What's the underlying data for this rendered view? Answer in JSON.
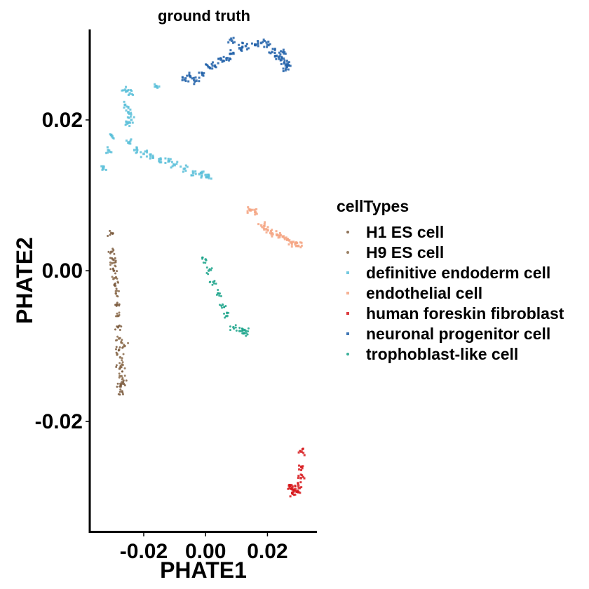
{
  "chart_data": {
    "type": "scatter",
    "title": "ground truth",
    "xlabel": "PHATE1",
    "ylabel": "PHATE2",
    "xlim": [
      -0.037,
      0.036
    ],
    "ylim": [
      -0.0345,
      0.032
    ],
    "x_ticks": [
      {
        "value": -0.02,
        "label": "-0.02"
      },
      {
        "value": 0.0,
        "label": "0.00"
      },
      {
        "value": 0.02,
        "label": "0.02"
      }
    ],
    "y_ticks": [
      {
        "value": 0.02,
        "label": "0.02"
      },
      {
        "value": 0.0,
        "label": "0.00"
      },
      {
        "value": -0.02,
        "label": "-0.02"
      }
    ],
    "legend": {
      "title": "cellTypes",
      "position": "right"
    },
    "series": [
      {
        "name": "H1 ES cell",
        "color": "#7b5a3d",
        "marker": "circle",
        "points": [
          [
            -0.0305,
            0.005
          ],
          [
            -0.0305,
            0.0025
          ],
          [
            -0.03,
            0.0015
          ],
          [
            -0.0297,
            0.0
          ],
          [
            -0.0292,
            -0.002
          ],
          [
            -0.0288,
            -0.0045
          ],
          [
            -0.0283,
            -0.0075
          ],
          [
            -0.028,
            -0.0105
          ],
          [
            -0.0278,
            -0.013
          ],
          [
            -0.0275,
            -0.015
          ],
          [
            -0.027,
            -0.016
          ],
          [
            -0.0265,
            -0.015
          ]
        ]
      },
      {
        "name": "H9 ES cell",
        "color": "#8a6a4a",
        "marker": "circle",
        "points": [
          [
            -0.0302,
            0.001
          ],
          [
            -0.0295,
            -0.001
          ],
          [
            -0.029,
            -0.003
          ],
          [
            -0.0285,
            -0.006
          ],
          [
            -0.028,
            -0.009
          ],
          [
            -0.0276,
            -0.0115
          ],
          [
            -0.0272,
            -0.014
          ],
          [
            -0.0268,
            -0.0125
          ],
          [
            -0.0262,
            -0.01
          ]
        ]
      },
      {
        "name": "definitive endoderm cell",
        "color": "#5bc0d9",
        "marker": "square",
        "points": [
          [
            -0.0315,
            0.016
          ],
          [
            -0.0305,
            0.018
          ],
          [
            -0.026,
            0.022
          ],
          [
            -0.025,
            0.021
          ],
          [
            -0.0255,
            0.0195
          ],
          [
            -0.024,
            0.02
          ],
          [
            -0.0245,
            0.0235
          ],
          [
            -0.026,
            0.024
          ],
          [
            -0.025,
            0.017
          ],
          [
            -0.023,
            0.016
          ],
          [
            -0.02,
            0.0155
          ],
          [
            -0.017,
            0.015
          ],
          [
            -0.015,
            0.0148
          ],
          [
            -0.012,
            0.0145
          ],
          [
            -0.01,
            0.014
          ],
          [
            -0.007,
            0.0135
          ],
          [
            -0.004,
            0.013
          ],
          [
            -0.002,
            0.0128
          ],
          [
            0.0,
            0.0127
          ],
          [
            0.001,
            0.0125
          ],
          [
            -0.016,
            0.0245
          ],
          [
            -0.033,
            0.0135
          ]
        ]
      },
      {
        "name": "endothelial cell",
        "color": "#f4a582",
        "marker": "square",
        "points": [
          [
            0.0145,
            0.008
          ],
          [
            0.016,
            0.0078
          ],
          [
            0.018,
            0.006
          ],
          [
            0.0195,
            0.0055
          ],
          [
            0.021,
            0.005
          ],
          [
            0.023,
            0.0048
          ],
          [
            0.025,
            0.0045
          ],
          [
            0.0265,
            0.0042
          ],
          [
            0.028,
            0.0038
          ],
          [
            0.029,
            0.0035
          ],
          [
            0.03,
            0.0033
          ]
        ]
      },
      {
        "name": "human foreskin fibroblast",
        "color": "#d7191c",
        "marker": "square",
        "points": [
          [
            0.031,
            -0.024
          ],
          [
            0.031,
            -0.026
          ],
          [
            0.0308,
            -0.0275
          ],
          [
            0.03,
            -0.0285
          ],
          [
            0.029,
            -0.029
          ],
          [
            0.028,
            -0.0288
          ],
          [
            0.027,
            -0.0285
          ],
          [
            0.028,
            -0.0295
          ],
          [
            0.0295,
            -0.0293
          ]
        ]
      },
      {
        "name": "neuronal progenitor cell",
        "color": "#1f5fa8",
        "marker": "square",
        "points": [
          [
            -0.0065,
            0.0255
          ],
          [
            -0.005,
            0.0258
          ],
          [
            -0.003,
            0.0252
          ],
          [
            -0.001,
            0.026
          ],
          [
            0.001,
            0.027
          ],
          [
            0.003,
            0.0272
          ],
          [
            0.005,
            0.028
          ],
          [
            0.007,
            0.0282
          ],
          [
            0.009,
            0.0288
          ],
          [
            0.011,
            0.0295
          ],
          [
            0.013,
            0.0298
          ],
          [
            0.016,
            0.03
          ],
          [
            0.018,
            0.0302
          ],
          [
            0.02,
            0.03
          ],
          [
            0.0215,
            0.029
          ],
          [
            0.023,
            0.0285
          ],
          [
            0.0245,
            0.028
          ],
          [
            0.0255,
            0.0275
          ],
          [
            0.026,
            0.0268
          ],
          [
            0.0265,
            0.0275
          ],
          [
            0.025,
            0.029
          ],
          [
            0.0085,
            0.0305
          ]
        ]
      },
      {
        "name": "trophoblast-like cell",
        "color": "#1aa389",
        "marker": "circle",
        "points": [
          [
            0.0,
            0.0015
          ],
          [
            0.001,
            0.0
          ],
          [
            0.0025,
            -0.0015
          ],
          [
            0.004,
            -0.003
          ],
          [
            0.0055,
            -0.0045
          ],
          [
            0.007,
            -0.006
          ],
          [
            0.009,
            -0.0075
          ],
          [
            0.011,
            -0.008
          ],
          [
            0.0125,
            -0.0083
          ],
          [
            0.013,
            -0.008
          ]
        ]
      }
    ]
  }
}
